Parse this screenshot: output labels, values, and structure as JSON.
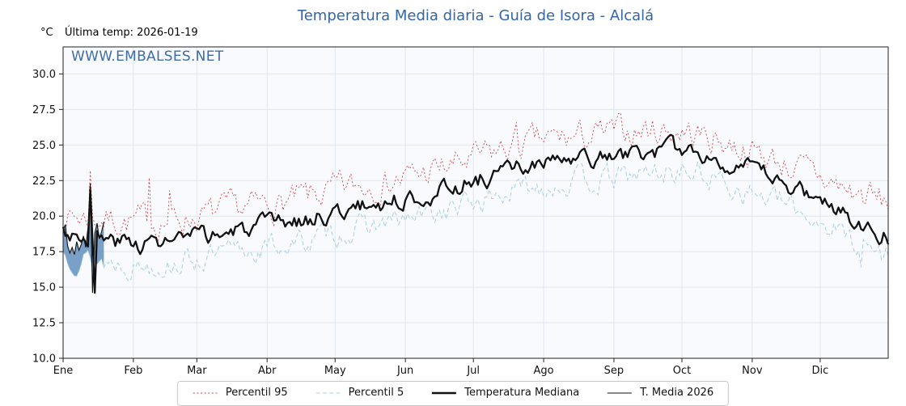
{
  "header": {
    "note": "Última temp: 2026-01-19"
  },
  "chart_data": {
    "type": "line",
    "title": "Temperatura Media diaria - Guía de Isora - Alcalá",
    "title_color": "#3465a4",
    "watermark": "WWW.EMBALSES.NET",
    "ylabel": "°C",
    "xlabel": "",
    "ylim": [
      10,
      31.9
    ],
    "yticks": [
      10.0,
      12.5,
      15.0,
      17.5,
      20.0,
      22.5,
      25.0,
      27.5,
      30.0
    ],
    "grid": true,
    "grid_color": "#dfe6f0",
    "plot_bg": "#f8fafd",
    "spine_color": "#222222",
    "legend_position": "bottom-center",
    "days_total": 365,
    "x_month_labels": [
      "Ene",
      "Feb",
      "Mar",
      "Abr",
      "May",
      "Jun",
      "Jul",
      "Ago",
      "Sep",
      "Oct",
      "Nov",
      "Dic"
    ],
    "month_start_days": [
      0,
      31,
      59,
      90,
      120,
      151,
      181,
      212,
      243,
      273,
      304,
      334
    ],
    "anchor_interval_days": 15,
    "series": [
      {
        "name": "Percentil 95",
        "color": "#cc4444",
        "style": "dotted",
        "dash": "2,2.6",
        "width": 0.9,
        "noise": 1.5,
        "seed": 7,
        "anchors": [
          20.0,
          19.9,
          19.6,
          19.7,
          20.0,
          20.4,
          20.8,
          21.2,
          21.8,
          22.3,
          22.7,
          23.3,
          24.0,
          24.8,
          25.3,
          25.5,
          25.8,
          26.1,
          26.0,
          25.4,
          24.6,
          23.7,
          22.7,
          21.6,
          20.9
        ],
        "spikes": [
          {
            "day": 12,
            "value": 23.2
          },
          {
            "day": 38,
            "value": 22.7
          },
          {
            "day": 47,
            "value": 21.8
          },
          {
            "day": 200,
            "value": 26.6
          },
          {
            "day": 356,
            "value": 22.4
          }
        ]
      },
      {
        "name": "Percentil 5",
        "color": "#a9cfdf",
        "style": "dashed",
        "dash": "5,3.2",
        "width": 1.0,
        "noise": 1.2,
        "seed": 13,
        "anchors": [
          17.4,
          16.9,
          16.6,
          16.7,
          17.0,
          17.4,
          17.8,
          18.2,
          18.8,
          19.3,
          19.7,
          20.3,
          21.0,
          21.7,
          22.2,
          22.4,
          22.6,
          23.0,
          23.2,
          22.6,
          21.7,
          20.8,
          19.7,
          18.4,
          17.1
        ],
        "spikes": [
          {
            "day": 13,
            "value": 16.2
          },
          {
            "day": 352,
            "value": 16.4
          }
        ]
      },
      {
        "name": "Temperatura Mediana",
        "color": "#111111",
        "style": "solid",
        "dash": "",
        "width": 2.3,
        "noise": 0.9,
        "seed": 3,
        "anchors": [
          19.0,
          18.4,
          18.1,
          18.2,
          18.5,
          18.9,
          19.3,
          19.7,
          20.3,
          20.8,
          21.2,
          21.8,
          22.5,
          23.2,
          23.7,
          23.9,
          24.1,
          24.5,
          24.7,
          24.1,
          23.2,
          22.3,
          21.2,
          19.9,
          18.6
        ],
        "spikes": [
          {
            "day": 12,
            "value": 21.9
          },
          {
            "day": 14,
            "value": 14.6
          }
        ]
      }
    ],
    "current_year_series": {
      "name": "T. Media 2026",
      "color": "#111111",
      "width": 1.1,
      "fill_color": "#4f81b3",
      "fill_opacity": 0.75,
      "start_day": 0,
      "values": [
        19.0,
        19.4,
        17.9,
        17.4,
        17.8,
        17.3,
        18.2,
        17.6,
        18.0,
        18.6,
        17.8,
        19.2,
        22.3,
        14.6,
        18.8,
        19.5,
        18.4,
        18.9,
        19.6
      ]
    },
    "legend_labels": [
      "Percentil 95",
      "Percentil 5",
      "Temperatura Mediana",
      "T. Media 2026"
    ]
  }
}
